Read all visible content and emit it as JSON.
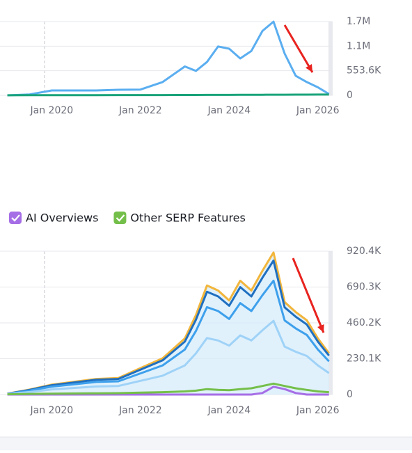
{
  "chart_data": [
    {
      "type": "line",
      "x": [
        "2019-01",
        "2019-07",
        "2020-01",
        "2021-01",
        "2021-07",
        "2022-01",
        "2022-07",
        "2023-01",
        "2023-04",
        "2023-07",
        "2023-10",
        "2024-01",
        "2024-04",
        "2024-07",
        "2024-10",
        "2025-01",
        "2025-04",
        "2025-07",
        "2025-10",
        "2026-01",
        "2026-04"
      ],
      "series": [
        {
          "color": "#5aaef0",
          "values": [
            0,
            20000,
            110000,
            110000,
            125000,
            130000,
            300000,
            650000,
            550000,
            750000,
            1100000,
            1050000,
            830000,
            1000000,
            1450000,
            1660000,
            940000,
            440000,
            300000,
            180000,
            30000
          ]
        },
        {
          "color": "#1aa37a",
          "values": [
            2000,
            3000,
            4000,
            5000,
            6000,
            6000,
            7000,
            8000,
            8000,
            9000,
            10000,
            10000,
            11000,
            11000,
            12000,
            14000,
            14000,
            15000,
            16000,
            17000,
            18000
          ]
        }
      ],
      "xlim": [
        "2018-11",
        "2026-05"
      ],
      "xticks": [
        {
          "value": "2020-01",
          "label": "Jan 2020"
        },
        {
          "value": "2022-01",
          "label": "Jan 2022"
        },
        {
          "value": "2024-01",
          "label": "Jan 2024"
        },
        {
          "value": "2026-01",
          "label": "Jan 2026"
        }
      ],
      "ylim": [
        0,
        1660800
      ],
      "yticks": [
        0,
        {
          "value": 553600,
          "label": "553.6K"
        },
        {
          "value": 1107200,
          "label": "1.1M"
        },
        {
          "value": 1660800,
          "label": "1.7M"
        }
      ],
      "grid": true
    },
    {
      "type": "line",
      "x": [
        "2019-01",
        "2019-07",
        "2020-01",
        "2021-01",
        "2021-07",
        "2022-01",
        "2022-07",
        "2023-01",
        "2023-04",
        "2023-07",
        "2023-10",
        "2024-01",
        "2024-04",
        "2024-07",
        "2024-10",
        "2025-01",
        "2025-04",
        "2025-07",
        "2025-10",
        "2026-01",
        "2026-04"
      ],
      "series": [
        {
          "color": "#f2b63c",
          "fill": true,
          "values": [
            6000,
            32000,
            64000,
            100000,
            106000,
            170000,
            233000,
            360000,
            510000,
            700000,
            668000,
            604000,
            731000,
            668000,
            795000,
            912000,
            594000,
            530000,
            477000,
            360000,
            265000
          ]
        },
        {
          "color": "#1f6fc0",
          "values": [
            5000,
            30000,
            60000,
            95000,
            100000,
            160000,
            220000,
            340000,
            480000,
            660000,
            630000,
            570000,
            690000,
            630000,
            750000,
            860000,
            560000,
            500000,
            450000,
            340000,
            250000
          ]
        },
        {
          "color": "#3ea0ec",
          "values": [
            4000,
            25000,
            51000,
            81000,
            85000,
            136000,
            187000,
            289000,
            408000,
            561000,
            536000,
            485000,
            587000,
            536000,
            638000,
            731000,
            476000,
            425000,
            383000,
            289000,
            213000
          ]
        },
        {
          "color": "#9fd2f7",
          "values": [
            3000,
            16000,
            33000,
            52000,
            55000,
            88000,
            121000,
            187000,
            264000,
            363000,
            347000,
            314000,
            380000,
            347000,
            413000,
            473000,
            308000,
            275000,
            248000,
            187000,
            138000
          ]
        },
        {
          "name": "AI Overviews",
          "color": "#a66ee6",
          "values": [
            0,
            0,
            0,
            0,
            0,
            0,
            0,
            0,
            0,
            0,
            0,
            0,
            0,
            0,
            10000,
            50000,
            35000,
            10000,
            0,
            0,
            0
          ]
        },
        {
          "name": "Other SERP Features",
          "color": "#74bf4a",
          "values": [
            2000,
            4000,
            6000,
            8000,
            9000,
            12000,
            15000,
            20000,
            25000,
            35000,
            30000,
            28000,
            35000,
            40000,
            55000,
            70000,
            55000,
            40000,
            30000,
            20000,
            15000
          ]
        }
      ],
      "xlim": [
        "2018-11",
        "2026-05"
      ],
      "xticks": [
        {
          "value": "2020-01",
          "label": "Jan 2020"
        },
        {
          "value": "2022-01",
          "label": "Jan 2022"
        },
        {
          "value": "2024-01",
          "label": "Jan 2024"
        },
        {
          "value": "2026-01",
          "label": "Jan 2026"
        }
      ],
      "ylim": [
        0,
        920400
      ],
      "yticks": [
        0,
        {
          "value": 230100,
          "label": "230.1K"
        },
        {
          "value": 460200,
          "label": "460.2K"
        },
        {
          "value": 690300,
          "label": "690.3K"
        },
        {
          "value": 920400,
          "label": "920.4K"
        }
      ],
      "grid": true,
      "legend": "top-left"
    }
  ]
}
